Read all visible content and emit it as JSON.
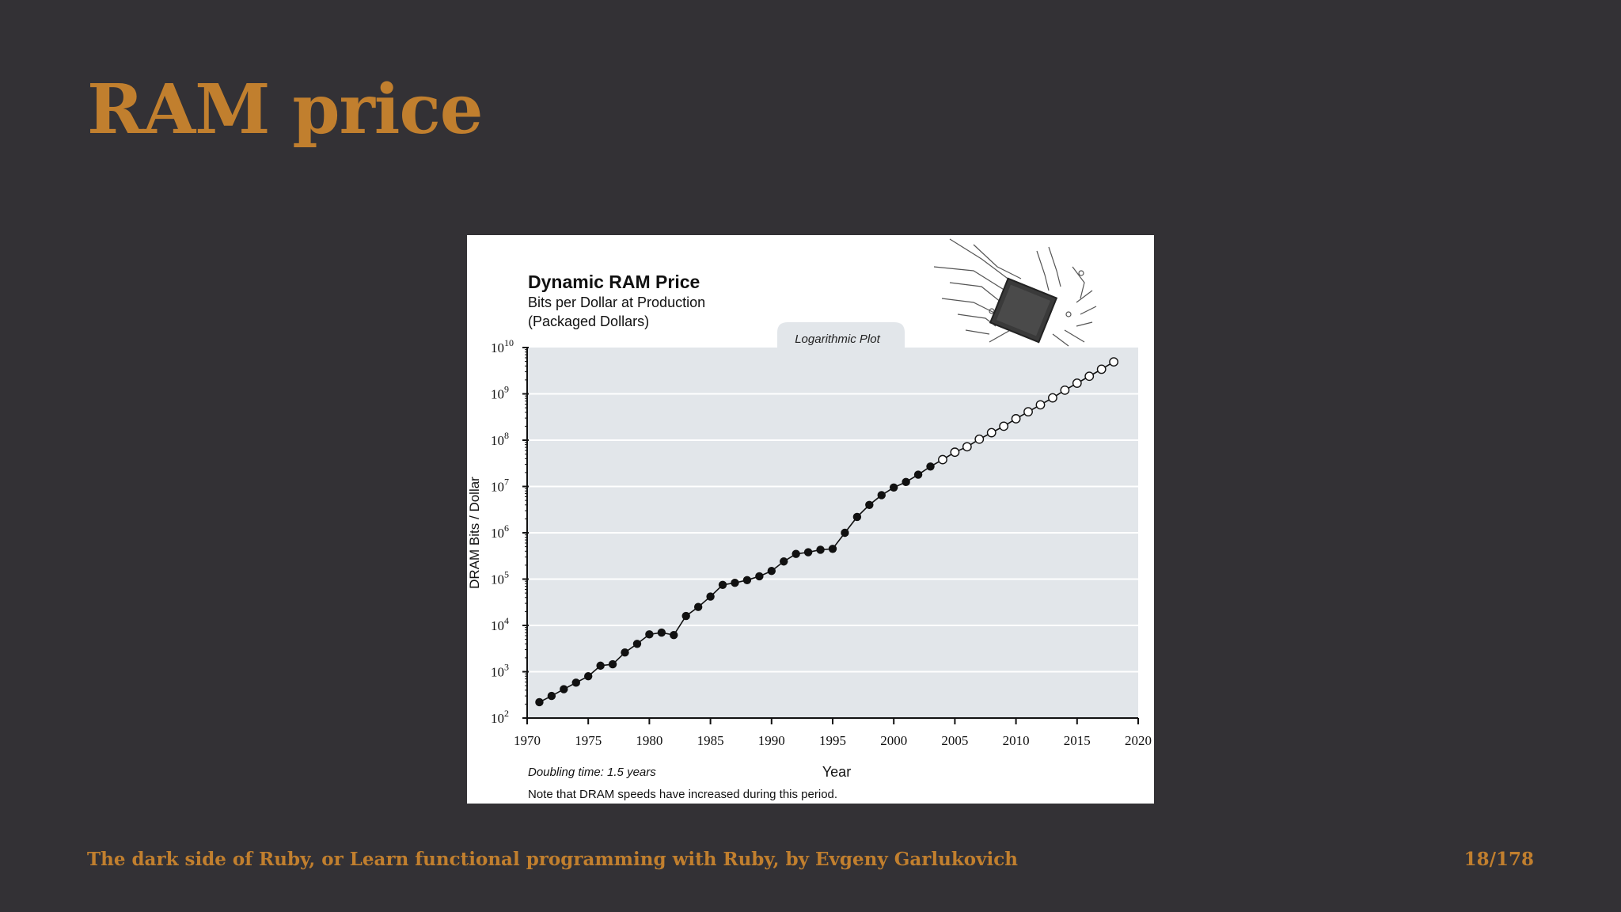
{
  "slide": {
    "title": "RAM price",
    "footer": "The dark side of Ruby, or Learn functional programming with Ruby, by Evgeny Garlukovich",
    "page_number": "18/178"
  },
  "colors": {
    "accent": "#c17f2e",
    "background": "#333135",
    "plot_area": "#e2e6ea"
  },
  "chart_data": {
    "type": "scatter",
    "title": "Dynamic RAM Price",
    "subtitle_line1": "Bits per Dollar at Production",
    "subtitle_line2": "(Packaged Dollars)",
    "plot_label": "Logarithmic Plot",
    "xlabel": "Year",
    "ylabel": "DRAM Bits / Dollar",
    "note_doubling": "Doubling time: 1.5 years",
    "note_speed": "Note that DRAM speeds have increased during this period.",
    "y_scale": "log",
    "xlim": [
      1970,
      2020
    ],
    "ylim": [
      100,
      10000000000
    ],
    "x_ticks": [
      "1970",
      "1975",
      "1980",
      "1985",
      "1990",
      "1995",
      "2000",
      "2005",
      "2010",
      "2015",
      "2020"
    ],
    "y_ticks": [
      {
        "base": "10",
        "exp": "2"
      },
      {
        "base": "10",
        "exp": "3"
      },
      {
        "base": "10",
        "exp": "4"
      },
      {
        "base": "10",
        "exp": "5"
      },
      {
        "base": "10",
        "exp": "6"
      },
      {
        "base": "10",
        "exp": "7"
      },
      {
        "base": "10",
        "exp": "8"
      },
      {
        "base": "10",
        "exp": "9"
      },
      {
        "base": "10",
        "exp": "10"
      }
    ],
    "grid": true,
    "series": [
      {
        "style": "filled",
        "x": [
          1971,
          1972,
          1973,
          1974,
          1975,
          1976,
          1977,
          1978,
          1979,
          1980,
          1981,
          1982,
          1983,
          1984,
          1985,
          1986,
          1987,
          1988,
          1989,
          1990,
          1991,
          1992,
          1993,
          1994,
          1995,
          1996,
          1997,
          1998,
          1999,
          2000,
          2001,
          2002,
          2003
        ],
        "y": [
          220,
          300,
          420,
          580,
          800,
          1350,
          1450,
          2600,
          4000,
          6400,
          7000,
          6200,
          16000,
          25000,
          42000,
          75000,
          83000,
          95000,
          115000,
          150000,
          240000,
          350000,
          380000,
          430000,
          450000,
          1000000,
          2200000,
          4000000,
          6500000,
          9500000,
          12500000,
          18000000,
          27000000
        ]
      },
      {
        "style": "open",
        "x": [
          2004,
          2005,
          2006,
          2007,
          2008,
          2009,
          2010,
          2011,
          2012,
          2013,
          2014,
          2015,
          2016,
          2017,
          2018
        ],
        "y": [
          38000000,
          55000000,
          72000000,
          105000000,
          145000000,
          200000000,
          290000000,
          410000000,
          580000000,
          820000000,
          1200000000,
          1700000000,
          2400000000,
          3400000000,
          4900000000
        ]
      }
    ]
  }
}
